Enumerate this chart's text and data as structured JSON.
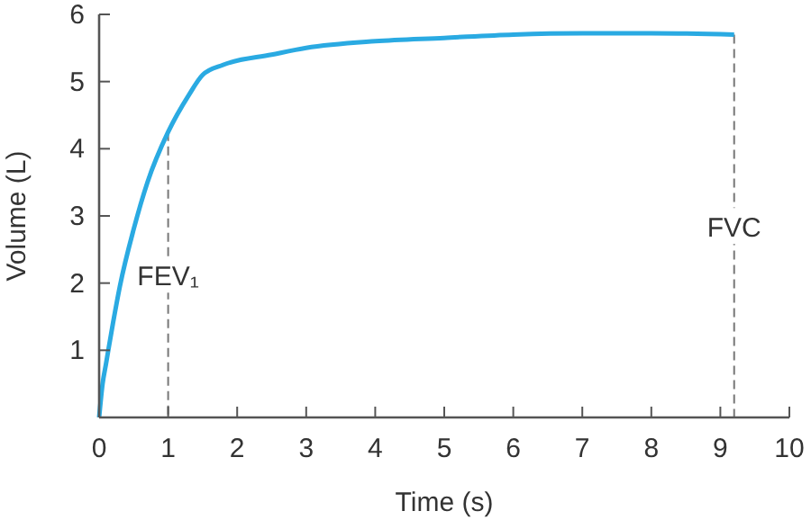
{
  "chart_data": {
    "type": "line",
    "xlabel": "Time (s)",
    "ylabel": "Volume (L)",
    "series": [
      {
        "color": "#2aaae2",
        "x": [
          0,
          0.05,
          0.1,
          0.2,
          0.3,
          0.5,
          0.7,
          1,
          1.3,
          1.5,
          1.8,
          2.5,
          3,
          4,
          5,
          6,
          7,
          8,
          9.2
        ],
        "values": [
          0,
          0.5,
          0.8,
          1.4,
          1.95,
          2.8,
          3.5,
          4.25,
          4.8,
          5.1,
          5.25,
          5.4,
          5.5,
          5.6,
          5.65,
          5.7,
          5.72,
          5.72,
          5.7
        ]
      }
    ],
    "xlim": [
      0,
      10
    ],
    "xticks": [
      0,
      1,
      2,
      3,
      4,
      5,
      6,
      7,
      8,
      9,
      10
    ],
    "ylim": [
      0,
      6
    ],
    "yticks": [
      1,
      2,
      3,
      4,
      5,
      6
    ],
    "ref_lines": [
      {
        "axis": "x",
        "value": 1,
        "label": "FEV₁",
        "line_style": "dashed"
      },
      {
        "axis": "x",
        "value": 9.2,
        "label": "FVC",
        "line_style": "dashed"
      }
    ],
    "grid": false,
    "line_style": "solid"
  }
}
